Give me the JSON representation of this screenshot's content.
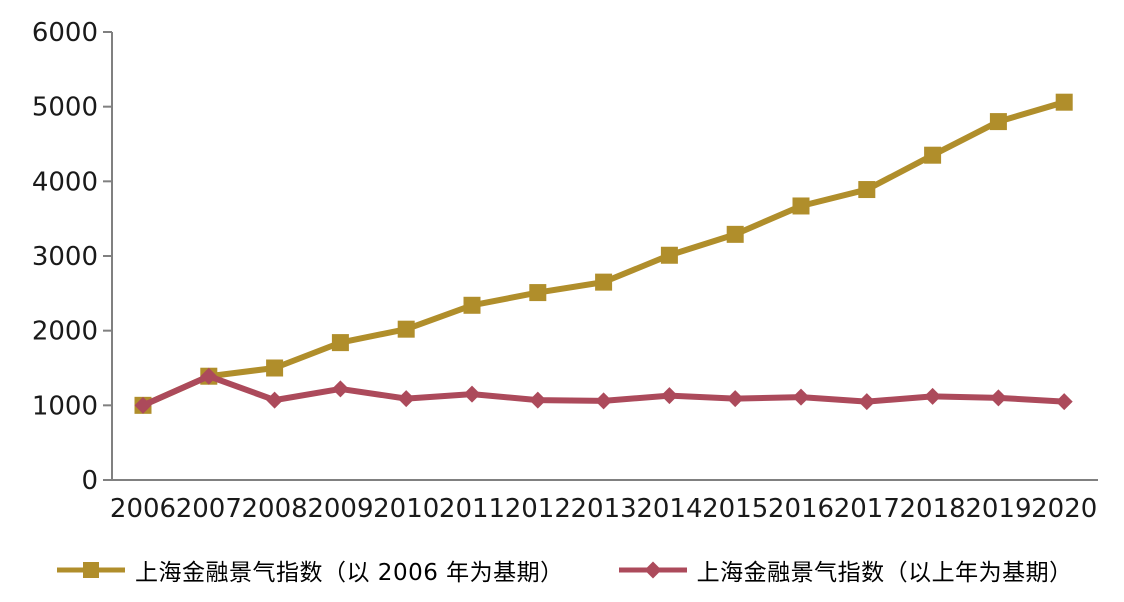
{
  "chart_data": {
    "type": "line",
    "x": [
      2006,
      2007,
      2008,
      2009,
      2010,
      2011,
      2012,
      2013,
      2014,
      2015,
      2016,
      2017,
      2018,
      2019,
      2020
    ],
    "series": [
      {
        "name": "上海金融景气指数（以 2006 年为基期）",
        "color": "#B08E2B",
        "marker": "square",
        "values": [
          1000,
          1390,
          1500,
          1840,
          2020,
          2340,
          2510,
          2650,
          3010,
          3290,
          3670,
          3890,
          4350,
          4800,
          5060
        ]
      },
      {
        "name": "上海金融景气指数（以上年为基期）",
        "color": "#AC4A5B",
        "marker": "diamond",
        "values": [
          1000,
          1390,
          1070,
          1220,
          1090,
          1150,
          1070,
          1060,
          1130,
          1090,
          1110,
          1050,
          1120,
          1100,
          1050
        ]
      }
    ],
    "title": "",
    "xlabel": "",
    "ylabel": "",
    "ylim": [
      0,
      6000
    ],
    "ytick_step": 1000,
    "yticks": [
      0,
      1000,
      2000,
      3000,
      4000,
      5000,
      6000
    ],
    "grid": false,
    "legend_position": "bottom",
    "axis_color": "#808080",
    "tick_label_color": "#1a1a1a"
  }
}
